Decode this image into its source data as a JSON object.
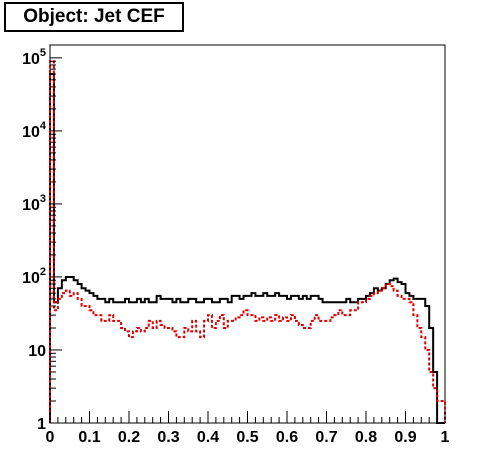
{
  "chart_data": {
    "type": "line",
    "title": "Object: Jet CEF",
    "xlabel": "",
    "ylabel": "",
    "xlim": [
      0,
      1
    ],
    "ylim": [
      1,
      150000
    ],
    "yscale": "log",
    "grid": false,
    "x_ticks": [
      "0",
      "0.1",
      "0.2",
      "0.3",
      "0.4",
      "0.5",
      "0.6",
      "0.7",
      "0.8",
      "0.9",
      "1"
    ],
    "y_ticks": [
      {
        "base": "1",
        "exp": "",
        "value": 1
      },
      {
        "base": "10",
        "exp": "",
        "value": 10
      },
      {
        "base": "10",
        "exp": "2",
        "value": 100
      },
      {
        "base": "10",
        "exp": "3",
        "value": 1000
      },
      {
        "base": "10",
        "exp": "4",
        "value": 10000
      },
      {
        "base": "10",
        "exp": "5",
        "value": 100000
      }
    ],
    "bin_edges": [
      0,
      1
    ],
    "series": [
      {
        "color": "#000000",
        "style": "solid",
        "values": [
          60000,
          45,
          70,
          90,
          100,
          100,
          90,
          80,
          70,
          65,
          60,
          55,
          50,
          50,
          45,
          50,
          45,
          45,
          45,
          50,
          45,
          45,
          50,
          45,
          50,
          45,
          45,
          55,
          50,
          50,
          50,
          45,
          50,
          45,
          45,
          50,
          50,
          45,
          45,
          50,
          50,
          45,
          45,
          50,
          50,
          45,
          55,
          55,
          50,
          55,
          55,
          60,
          55,
          55,
          60,
          55,
          55,
          60,
          55,
          55,
          50,
          55,
          55,
          50,
          55,
          50,
          55,
          55,
          50,
          45,
          45,
          45,
          45,
          45,
          45,
          50,
          45,
          45,
          50,
          50,
          55,
          60,
          70,
          65,
          70,
          80,
          90,
          95,
          85,
          80,
          60,
          55,
          50,
          50,
          50,
          40,
          20,
          5,
          1,
          1
        ]
      },
      {
        "color": "#dd0000",
        "style": "dashed",
        "values": [
          90000,
          35,
          50,
          60,
          65,
          55,
          60,
          50,
          40,
          40,
          35,
          30,
          30,
          25,
          25,
          30,
          25,
          25,
          20,
          18,
          15,
          18,
          20,
          18,
          20,
          25,
          20,
          25,
          22,
          20,
          20,
          18,
          15,
          15,
          20,
          18,
          25,
          18,
          15,
          25,
          30,
          20,
          25,
          30,
          20,
          25,
          25,
          28,
          30,
          35,
          30,
          30,
          25,
          28,
          25,
          28,
          25,
          30,
          25,
          28,
          25,
          30,
          25,
          22,
          20,
          20,
          25,
          30,
          25,
          25,
          25,
          28,
          30,
          35,
          30,
          30,
          35,
          35,
          45,
          45,
          50,
          55,
          60,
          65,
          70,
          80,
          75,
          65,
          55,
          50,
          50,
          45,
          30,
          20,
          15,
          10,
          5,
          3,
          2,
          2
        ]
      }
    ]
  }
}
